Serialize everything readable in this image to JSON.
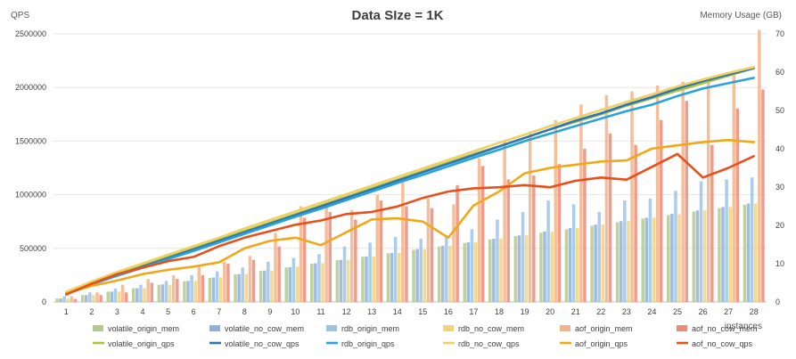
{
  "chart_data": {
    "type": "bar",
    "title": "Data SIze = 1K",
    "left_axis_label": "QPS",
    "right_axis_label": "Memory Usage (GB)",
    "xlabel": "instances",
    "categories": [
      "1",
      "2",
      "3",
      "4",
      "5",
      "6",
      "7",
      "8",
      "9",
      "10",
      "11",
      "12",
      "13",
      "14",
      "15",
      "16",
      "17",
      "18",
      "19",
      "20",
      "21",
      "22",
      "23",
      "24",
      "25",
      "26",
      "27",
      "28"
    ],
    "y_left": {
      "min": 0,
      "max": 2500000,
      "ticks": [
        "0",
        "500000",
        "1000000",
        "1500000",
        "2000000",
        "2500000"
      ]
    },
    "y_right": {
      "min": 0,
      "max": 70,
      "ticks": [
        "0",
        "10",
        "20",
        "30",
        "40",
        "50",
        "60",
        "70"
      ]
    },
    "grid": true,
    "legend_position": "bottom",
    "bar_series": [
      {
        "name": "volatile_origin_mem",
        "color": "#b5c98a",
        "axis": "right",
        "values": [
          0.9,
          1.8,
          2.7,
          3.6,
          4.5,
          5.4,
          6.3,
          7.2,
          8.1,
          9.0,
          10.0,
          10.9,
          11.8,
          12.7,
          13.6,
          14.5,
          15.4,
          16.3,
          17.2,
          18.1,
          19.0,
          19.9,
          20.8,
          21.8,
          22.7,
          23.6,
          24.5,
          25.4
        ]
      },
      {
        "name": "volatile_no_cow_mem",
        "color": "#8fb0d8",
        "axis": "right",
        "values": [
          0.9,
          1.8,
          2.7,
          3.6,
          4.6,
          5.5,
          6.4,
          7.3,
          8.2,
          9.1,
          10.1,
          11.0,
          11.9,
          12.8,
          13.8,
          14.7,
          15.6,
          16.5,
          17.4,
          18.4,
          19.3,
          20.2,
          21.1,
          22.0,
          23.0,
          23.9,
          24.8,
          25.7
        ]
      },
      {
        "name": "rdb_origin_mem",
        "color": "#9cc3e6",
        "axis": "right",
        "values": [
          1.5,
          2.5,
          3.5,
          4.5,
          5.5,
          7.0,
          8.0,
          9.0,
          10.5,
          11.5,
          12.5,
          14.5,
          15.5,
          17.0,
          16.5,
          17.5,
          19.0,
          21.5,
          23.5,
          26.5,
          25.5,
          23.5,
          26.5,
          27.0,
          29.0,
          31.5,
          32.0,
          32.5
        ]
      },
      {
        "name": "rdb_no_cow_mem",
        "color": "#f2d27a",
        "axis": "right",
        "values": [
          0.9,
          1.8,
          2.7,
          3.6,
          4.5,
          5.5,
          6.4,
          7.3,
          8.2,
          9.2,
          10.1,
          11.0,
          11.9,
          12.8,
          13.7,
          14.7,
          15.6,
          16.5,
          17.4,
          18.3,
          19.3,
          20.2,
          21.1,
          22.0,
          22.9,
          23.9,
          24.8,
          25.7
        ]
      },
      {
        "name": "aof_origin_mem",
        "color": "#f2b48a",
        "axis": "right",
        "values": [
          1.5,
          2.5,
          4.5,
          6.0,
          7.0,
          9.5,
          10.5,
          12.0,
          18.0,
          25.0,
          26.0,
          24.0,
          28.0,
          32.0,
          27.0,
          25.5,
          37.5,
          42.0,
          44.5,
          47.5,
          51.5,
          54.0,
          55.0,
          56.5,
          57.5,
          58.5,
          60.0,
          71.0
        ]
      },
      {
        "name": "aof_no_cow_mem",
        "color": "#ee8a78",
        "axis": "right",
        "values": [
          0.8,
          1.8,
          2.5,
          5.0,
          6.0,
          7.0,
          10.0,
          11.0,
          14.5,
          22.0,
          23.5,
          21.5,
          26.5,
          25.0,
          24.5,
          30.5,
          35.5,
          32.0,
          33.0,
          36.0,
          40.0,
          44.0,
          41.0,
          47.5,
          52.5,
          41.0,
          50.5,
          55.5
        ]
      }
    ],
    "line_series": [
      {
        "name": "volatile_origin_qps",
        "color": "#a8c43e",
        "axis": "left",
        "values": [
          90000,
          180000,
          260000,
          340000,
          420000,
          500000,
          580000,
          660000,
          740000,
          820000,
          900000,
          980000,
          1060000,
          1140000,
          1220000,
          1300000,
          1380000,
          1450000,
          1530000,
          1610000,
          1680000,
          1750000,
          1830000,
          1900000,
          1970000,
          2040000,
          2110000,
          2180000
        ]
      },
      {
        "name": "volatile_no_cow_qps",
        "color": "#2e75b6",
        "axis": "left",
        "values": [
          85000,
          170000,
          250000,
          330000,
          410000,
          490000,
          570000,
          650000,
          730000,
          810000,
          890000,
          970000,
          1050000,
          1130000,
          1210000,
          1290000,
          1370000,
          1450000,
          1530000,
          1610000,
          1690000,
          1760000,
          1840000,
          1910000,
          1990000,
          2060000,
          2120000,
          2180000
        ]
      },
      {
        "name": "rdb_origin_qps",
        "color": "#2aa3dc",
        "axis": "left",
        "values": [
          80000,
          165000,
          245000,
          320000,
          400000,
          475000,
          555000,
          635000,
          715000,
          795000,
          870000,
          950000,
          1030000,
          1110000,
          1185000,
          1265000,
          1345000,
          1420000,
          1500000,
          1570000,
          1640000,
          1710000,
          1780000,
          1840000,
          1920000,
          1990000,
          2040000,
          2090000
        ]
      },
      {
        "name": "rdb_no_cow_qps",
        "color": "#f0d060",
        "axis": "left",
        "values": [
          95000,
          190000,
          280000,
          360000,
          440000,
          520000,
          600000,
          685000,
          765000,
          845000,
          925000,
          1005000,
          1085000,
          1165000,
          1245000,
          1325000,
          1405000,
          1485000,
          1560000,
          1640000,
          1715000,
          1790000,
          1865000,
          1935000,
          2010000,
          2075000,
          2135000,
          2190000
        ]
      },
      {
        "name": "aof_origin_qps",
        "color": "#f0a818",
        "axis": "left",
        "values": [
          80000,
          150000,
          200000,
          260000,
          300000,
          330000,
          370000,
          500000,
          570000,
          600000,
          530000,
          650000,
          770000,
          780000,
          750000,
          600000,
          900000,
          1030000,
          1200000,
          1250000,
          1280000,
          1310000,
          1320000,
          1430000,
          1460000,
          1490000,
          1510000,
          1490000
        ]
      },
      {
        "name": "aof_no_cow_qps",
        "color": "#e8501a",
        "axis": "left",
        "values": [
          70000,
          170000,
          260000,
          320000,
          380000,
          420000,
          520000,
          600000,
          660000,
          720000,
          760000,
          820000,
          840000,
          890000,
          970000,
          1030000,
          1060000,
          1070000,
          1090000,
          1070000,
          1130000,
          1160000,
          1140000,
          1260000,
          1380000,
          1160000,
          1250000,
          1360000
        ]
      }
    ]
  }
}
